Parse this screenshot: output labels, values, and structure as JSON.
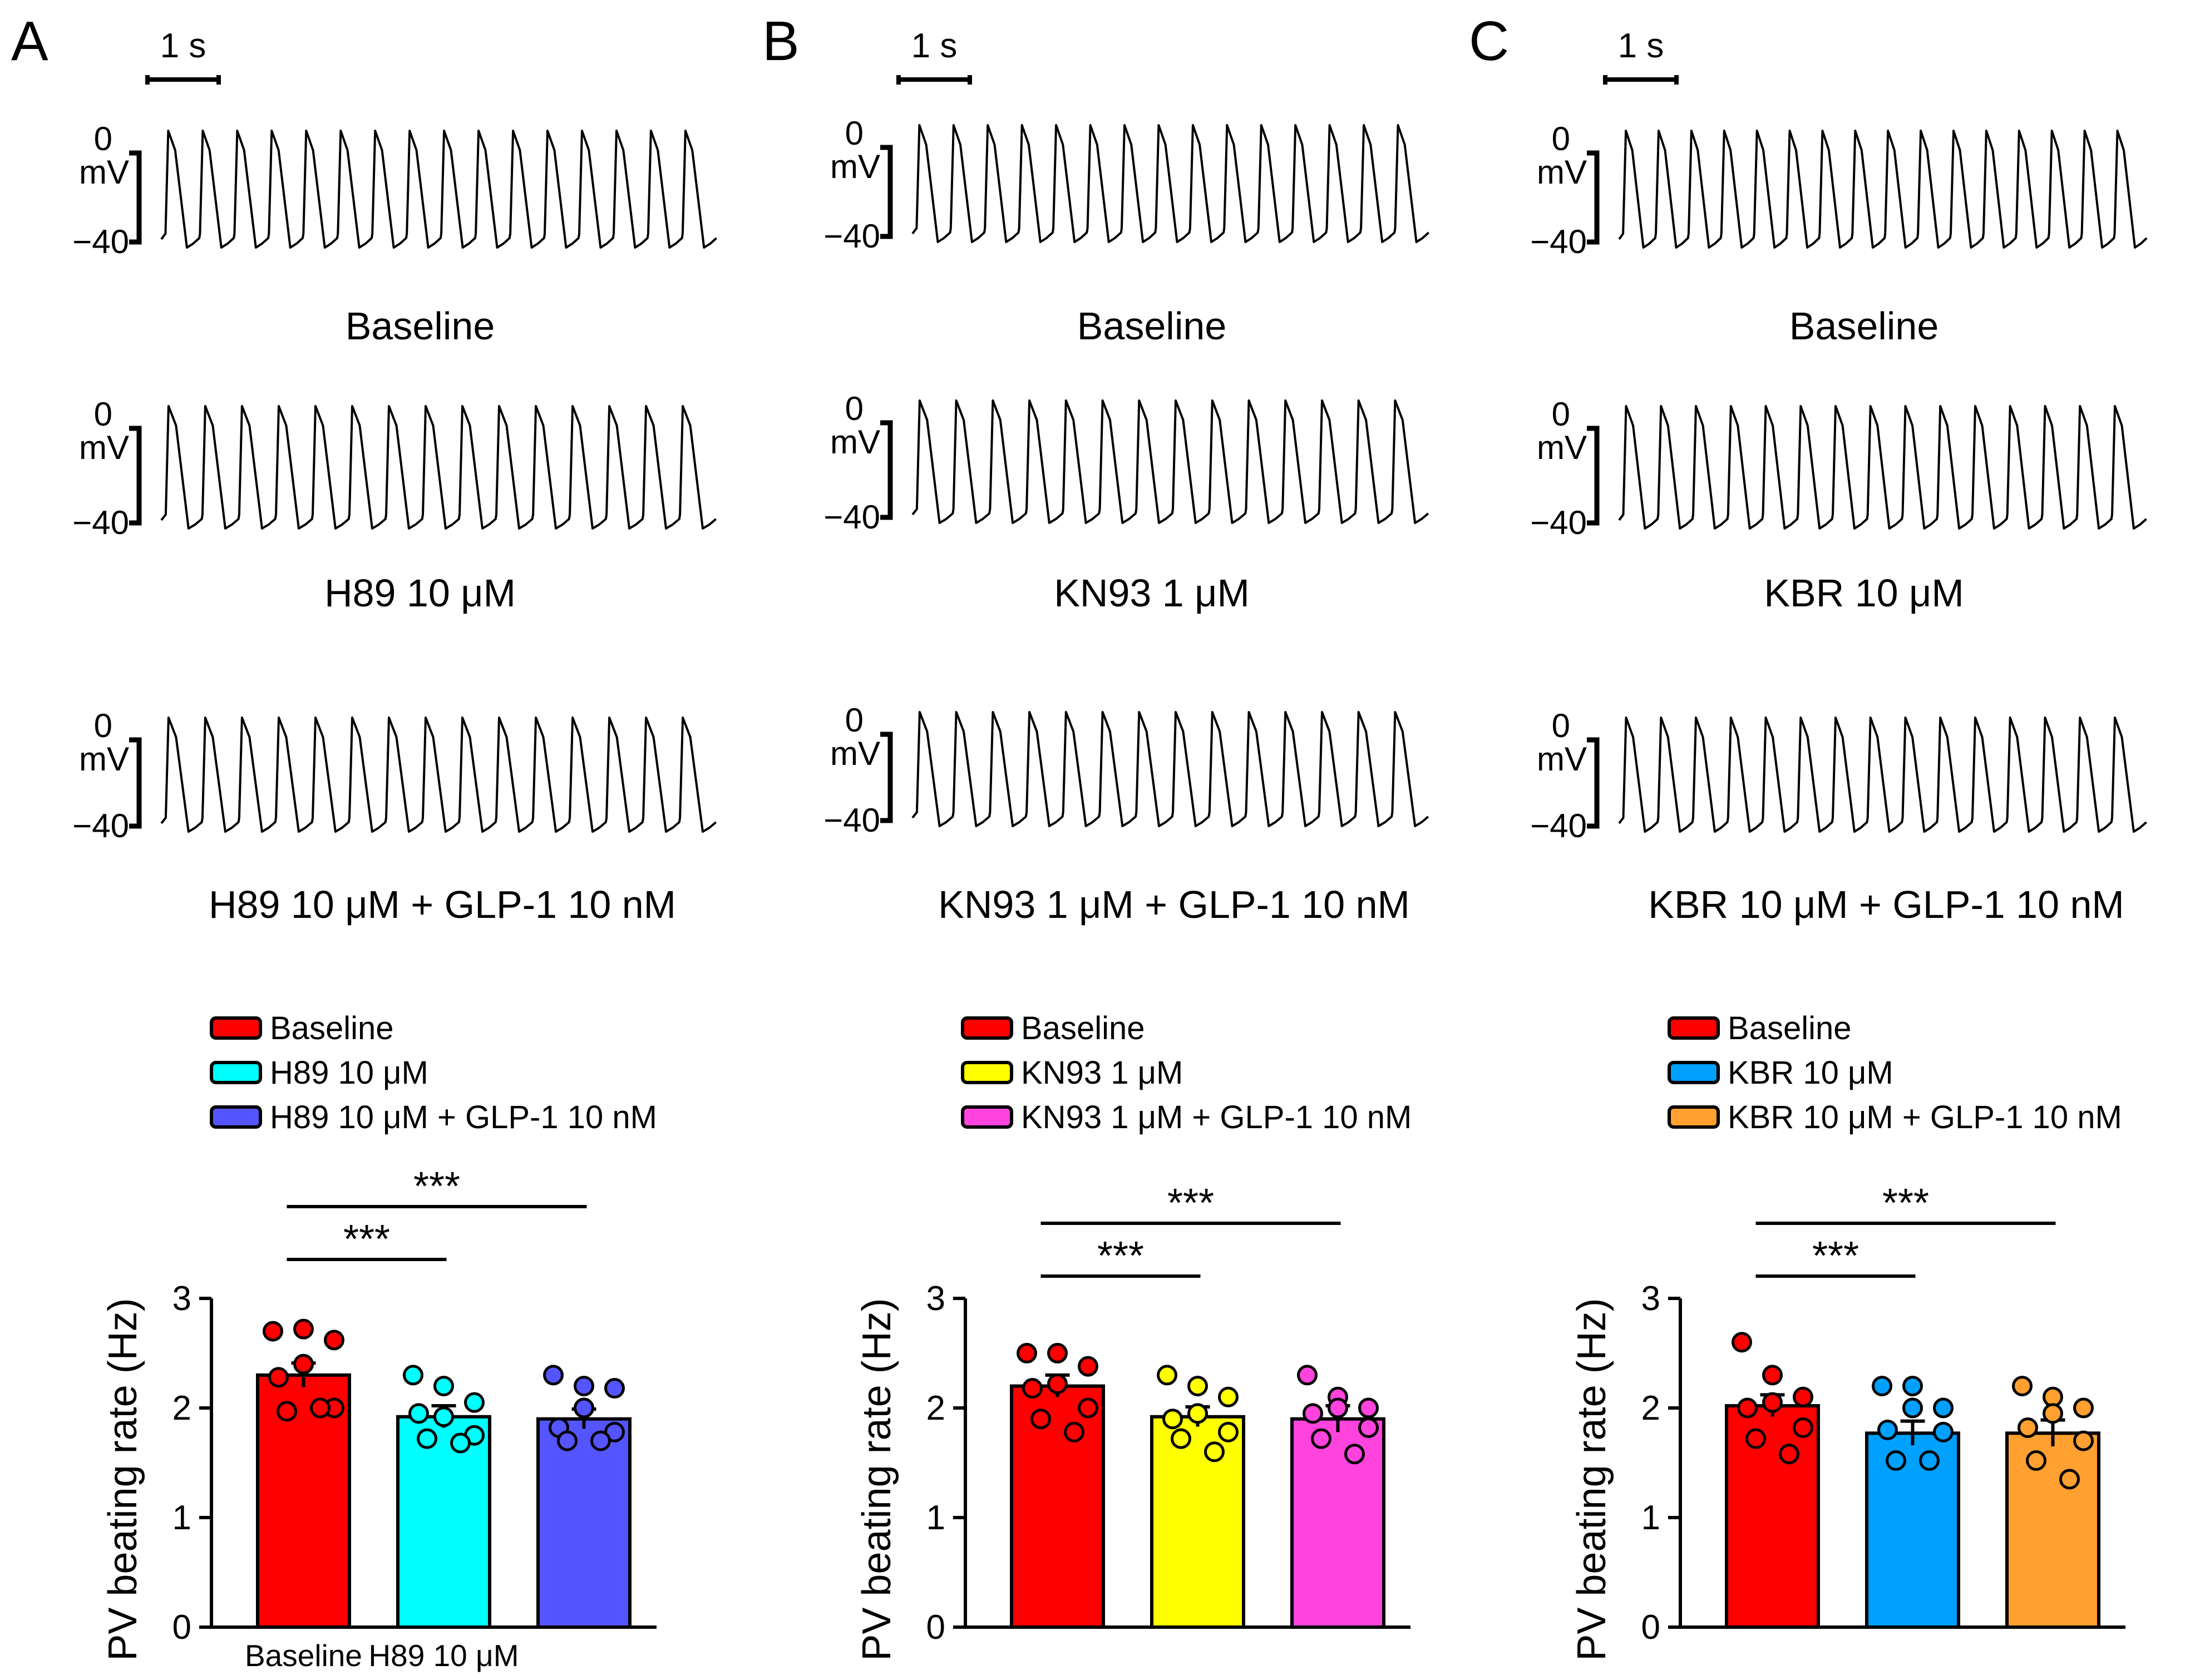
{
  "panels": [
    {
      "letter": "A",
      "scale_bar_time": "1 s",
      "voltage_labels": {
        "top": "0",
        "unit": "mV",
        "bottom": "−40"
      },
      "trace_labels": [
        "Baseline",
        "H89 10 μM",
        "H89 10 μM + GLP-1 10 nM"
      ],
      "spike_counts": [
        16,
        15,
        15
      ]
    },
    {
      "letter": "B",
      "scale_bar_time": "1 s",
      "voltage_labels": {
        "top": "0",
        "unit": "mV",
        "bottom": "−40"
      },
      "trace_labels": [
        "Baseline",
        "KN93 1 μM",
        "KN93 1 μM + GLP-1 10 nM"
      ],
      "spike_counts": [
        15,
        14,
        14
      ]
    },
    {
      "letter": "C",
      "scale_bar_time": "1 s",
      "voltage_labels": {
        "top": "0",
        "unit": "mV",
        "bottom": "−40"
      },
      "trace_labels": [
        "Baseline",
        "KBR 10 μM",
        "KBR 10 μM + GLP-1 10 nM"
      ],
      "spike_counts": [
        16,
        15,
        15
      ]
    }
  ],
  "chart_data": [
    {
      "type": "bar",
      "ylabel": "PV beating rate (Hz)",
      "ylim": [
        0,
        3
      ],
      "yticks": [
        "0",
        "1",
        "2",
        "3"
      ],
      "x_tick_labels": [
        "Baseline",
        "H89 10 μM"
      ],
      "legend": [
        "Baseline",
        "H89 10 μM",
        "H89 10 μM + GLP-1 10 nM"
      ],
      "categories": [
        "Baseline",
        "H89 10 μM",
        "H89 10 μM + GLP-1 10 nM"
      ],
      "values": [
        2.3,
        1.92,
        1.9
      ],
      "sem": [
        0.11,
        0.1,
        0.09
      ],
      "colors": [
        "#ff0000",
        "#00ffff",
        "#5555ff"
      ],
      "points": [
        [
          2.7,
          2.72,
          2.62,
          2.4,
          2.28,
          2.0,
          1.97,
          2.0
        ],
        [
          2.3,
          2.2,
          2.05,
          1.92,
          1.95,
          1.75,
          1.72,
          1.68
        ],
        [
          2.3,
          2.2,
          2.18,
          2.0,
          1.82,
          1.78,
          1.7,
          1.7
        ]
      ],
      "significance": [
        {
          "from": 0,
          "to": 1,
          "label": "***"
        },
        {
          "from": 0,
          "to": 2,
          "label": "***"
        }
      ]
    },
    {
      "type": "bar",
      "ylabel": "PV beating rate (Hz)",
      "ylim": [
        0,
        3
      ],
      "yticks": [
        "0",
        "1",
        "2",
        "3"
      ],
      "legend": [
        "Baseline",
        "KN93 1 μM",
        "KN93 1 μM + GLP-1 10 nM"
      ],
      "categories": [
        "Baseline",
        "KN93 1 μM",
        "KN93 1 μM + GLP-1 10 nM"
      ],
      "values": [
        2.2,
        1.92,
        1.9
      ],
      "sem": [
        0.1,
        0.09,
        0.12
      ],
      "colors": [
        "#ff0000",
        "#ffff00",
        "#ff44dd"
      ],
      "points": [
        [
          2.5,
          2.5,
          2.38,
          2.22,
          2.18,
          2.0,
          1.9,
          1.78
        ],
        [
          2.3,
          2.2,
          2.1,
          1.95,
          1.9,
          1.78,
          1.72,
          1.6
        ],
        [
          2.3,
          2.1,
          2.0,
          2.0,
          1.95,
          1.82,
          1.72,
          1.58
        ]
      ],
      "significance": [
        {
          "from": 0,
          "to": 1,
          "label": "***"
        },
        {
          "from": 0,
          "to": 2,
          "label": "***"
        }
      ]
    },
    {
      "type": "bar",
      "ylabel": "PV beating rate (Hz)",
      "ylim": [
        0,
        3
      ],
      "yticks": [
        "0",
        "1",
        "2",
        "3"
      ],
      "legend": [
        "Baseline",
        "KBR 10 μM",
        "KBR 10 μM + GLP-1 10 nM"
      ],
      "categories": [
        "Baseline",
        "KBR 10 μM",
        "KBR 10 μM + GLP-1 10 nM"
      ],
      "values": [
        2.02,
        1.77,
        1.77
      ],
      "sem": [
        0.1,
        0.11,
        0.12
      ],
      "colors": [
        "#ff0000",
        "#00a0ff",
        "#ffa030"
      ],
      "points": [
        [
          2.6,
          2.3,
          2.1,
          2.05,
          2.0,
          1.82,
          1.72,
          1.58
        ],
        [
          2.2,
          2.2,
          2.0,
          2.0,
          1.8,
          1.78,
          1.52,
          1.52
        ],
        [
          2.2,
          2.1,
          2.0,
          1.95,
          1.82,
          1.7,
          1.52,
          1.35
        ]
      ],
      "significance": [
        {
          "from": 0,
          "to": 1,
          "label": "***"
        },
        {
          "from": 0,
          "to": 2,
          "label": "***"
        }
      ]
    }
  ]
}
